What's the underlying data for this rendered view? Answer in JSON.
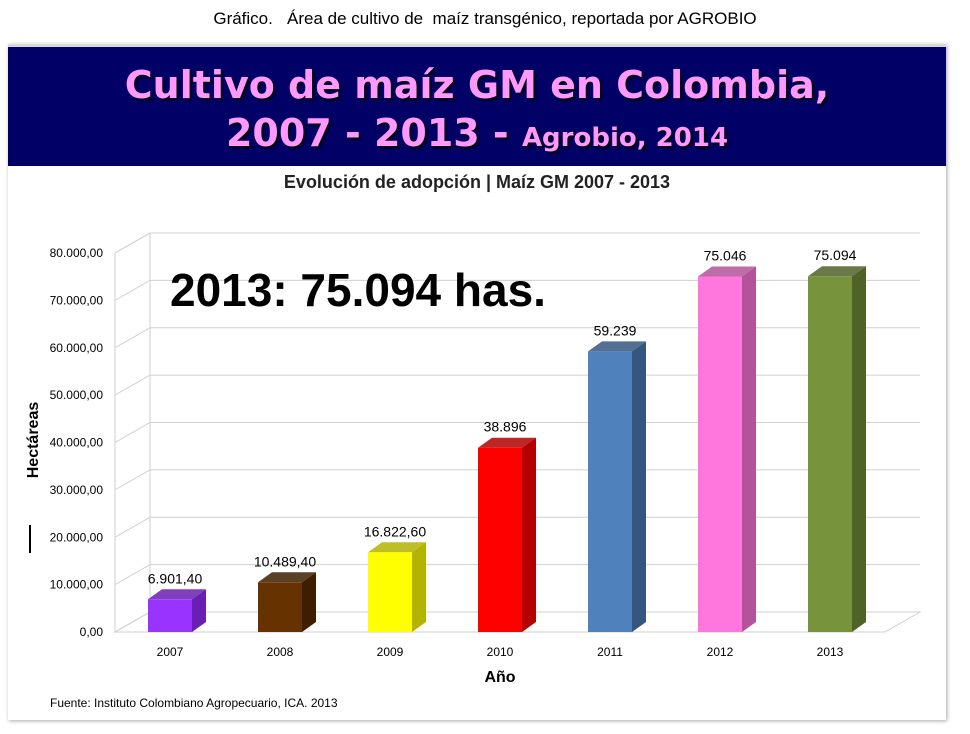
{
  "caption": "Gráfico.   Área de cultivo de  maíz transgénico, reportada por AGROBIO",
  "banner": {
    "line1": "Cultivo de maíz GM en Colombia,",
    "line2_main": "2007 - 2013 - ",
    "line2_small": "Agrobio, 2014",
    "bg_color": "#000066",
    "text_color": "#ff99ff"
  },
  "chart_data": {
    "type": "bar",
    "title": "Evolución de adopción | Maíz GM 2007 - 2013",
    "xlabel": "Año",
    "ylabel": "Hectáreas",
    "ylim": [
      0,
      80000
    ],
    "ytick_labels": [
      "0,00",
      "10.000,00",
      "20.000,00",
      "30.000,00",
      "40.000,00",
      "50.000,00",
      "60.000,00",
      "70.000,00",
      "80.000,00"
    ],
    "categories": [
      "2007",
      "2008",
      "2009",
      "2010",
      "2011",
      "2012",
      "2013"
    ],
    "values": [
      6901.4,
      10489.4,
      16822.6,
      38896,
      59239,
      75046,
      75094
    ],
    "data_labels": [
      "6.901,40",
      "10.489,40",
      "16.822,60",
      "38.896",
      "59.239",
      "75.046",
      "75.094"
    ],
    "colors": [
      "#9933ff",
      "#663300",
      "#ffff00",
      "#ff0000",
      "#4f81bd",
      "#ff77dd",
      "#77933c"
    ],
    "side_colors": [
      "#6a1fb3",
      "#3d1f00",
      "#b3b300",
      "#b30000",
      "#35577f",
      "#b3539a",
      "#4f6328"
    ],
    "grid": true,
    "style": "3d",
    "annotation": "2013: 75.094 has."
  },
  "source": "Fuente: Instituto Colombiano Agropecuario, ICA. 2013"
}
